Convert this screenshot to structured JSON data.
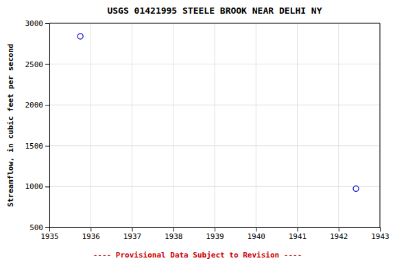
{
  "chart_data": {
    "type": "scatter",
    "title": "USGS 01421995 STEELE BROOK NEAR DELHI NY",
    "ylabel": "Streamflow, in cubic feet per second",
    "x": [
      1935.75,
      1942.42
    ],
    "values": [
      2840,
      975
    ],
    "color": "#0000cc",
    "marker": "circle-open",
    "xlim": [
      1935,
      1943
    ],
    "ylim": [
      500,
      3000
    ],
    "xticks": [
      1935,
      1936,
      1937,
      1938,
      1939,
      1940,
      1941,
      1942,
      1943
    ],
    "yticks": [
      500,
      1000,
      1500,
      2000,
      2500,
      3000
    ],
    "grid": true,
    "annotations": [
      {
        "text": "---- Provisional Data Subject to Revision ----",
        "color": "#cc0000"
      }
    ]
  }
}
